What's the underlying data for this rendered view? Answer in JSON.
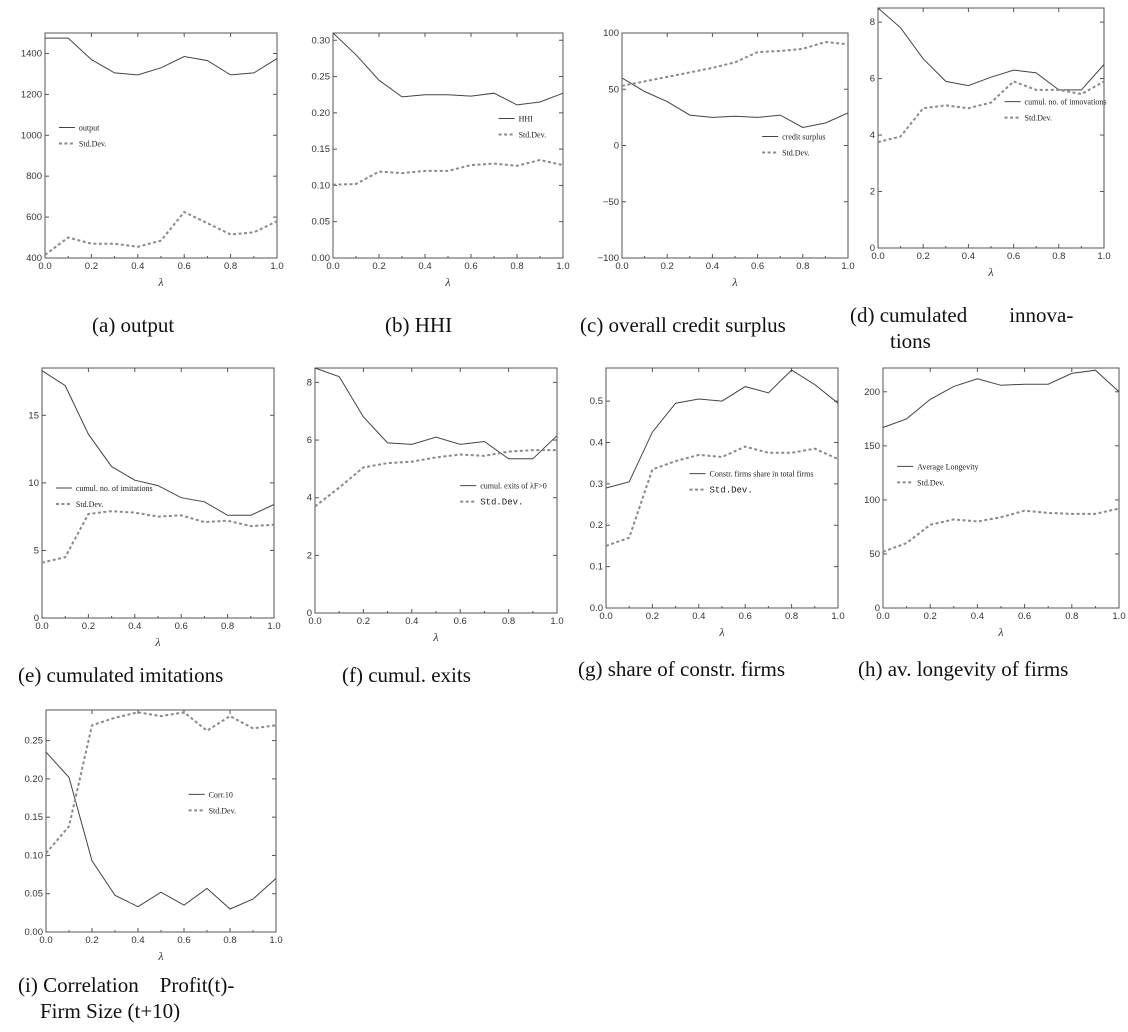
{
  "chart_data": [
    {
      "id": "a",
      "type": "line",
      "caption": "(a) output",
      "xlabel": "λ",
      "xlim": [
        0,
        1
      ],
      "ylim": [
        400,
        1500
      ],
      "xticks": [
        0.0,
        0.2,
        0.4,
        0.6,
        0.8,
        1.0
      ],
      "xtick_labels": [
        "0.0",
        "0.2",
        "0.4",
        "0.6",
        "0.8",
        "1.0"
      ],
      "yticks": [
        400,
        600,
        800,
        1000,
        1200,
        1400
      ],
      "ytick_labels": [
        "400",
        "600",
        "800",
        "1000",
        "1200",
        "1400"
      ],
      "x": [
        0.0,
        0.1,
        0.2,
        0.3,
        0.4,
        0.5,
        0.6,
        0.7,
        0.8,
        0.9,
        1.0
      ],
      "series": [
        {
          "name": "output",
          "style": "solid",
          "values": [
            1475,
            1475,
            1370,
            1305,
            1295,
            1330,
            1385,
            1365,
            1295,
            1305,
            1375
          ]
        },
        {
          "name": "Std.Dev.",
          "style": "dash",
          "values": [
            415,
            500,
            470,
            470,
            455,
            485,
            625,
            570,
            515,
            525,
            580
          ]
        }
      ],
      "legend": "left-middle"
    },
    {
      "id": "b",
      "type": "line",
      "caption": "(b) HHI",
      "xlabel": "λ",
      "xlim": [
        0,
        1
      ],
      "ylim": [
        0,
        0.31
      ],
      "xticks": [
        0.0,
        0.2,
        0.4,
        0.6,
        0.8,
        1.0
      ],
      "xtick_labels": [
        "0.0",
        "0.2",
        "0.4",
        "0.6",
        "0.8",
        "1.0"
      ],
      "yticks": [
        0.0,
        0.05,
        0.1,
        0.15,
        0.2,
        0.25,
        0.3
      ],
      "ytick_labels": [
        "0.00",
        "0.05",
        "0.10",
        "0.15",
        "0.20",
        "0.25",
        "0.30"
      ],
      "x": [
        0.0,
        0.1,
        0.2,
        0.3,
        0.4,
        0.5,
        0.6,
        0.7,
        0.8,
        0.9,
        1.0
      ],
      "series": [
        {
          "name": "HHI",
          "style": "solid",
          "values": [
            0.31,
            0.28,
            0.245,
            0.222,
            0.225,
            0.225,
            0.223,
            0.227,
            0.211,
            0.215,
            0.227
          ]
        },
        {
          "name": "Std.Dev.",
          "style": "dash",
          "values": [
            0.101,
            0.102,
            0.119,
            0.117,
            0.12,
            0.12,
            0.128,
            0.13,
            0.127,
            0.135,
            0.128
          ]
        }
      ],
      "legend": "right-middle"
    },
    {
      "id": "c",
      "type": "line",
      "caption": "(c) overall credit surplus",
      "xlabel": "λ",
      "xlim": [
        0,
        1
      ],
      "ylim": [
        -100,
        100
      ],
      "xticks": [
        0.0,
        0.2,
        0.4,
        0.6,
        0.8,
        1.0
      ],
      "xtick_labels": [
        "0.0",
        "0.2",
        "0.4",
        "0.6",
        "0.8",
        "1.0"
      ],
      "yticks": [
        -100,
        -50,
        0,
        50,
        100
      ],
      "ytick_labels": [
        "−100",
        "−50",
        "0",
        "50",
        "100"
      ],
      "x": [
        0.0,
        0.1,
        0.2,
        0.3,
        0.4,
        0.5,
        0.6,
        0.7,
        0.8,
        0.9,
        1.0
      ],
      "series": [
        {
          "name": "credit surplus",
          "style": "solid",
          "values": [
            60,
            48,
            39,
            27,
            25,
            26,
            25,
            27,
            16,
            20,
            29
          ]
        },
        {
          "name": "Std.Dev.",
          "style": "dash",
          "values": [
            53,
            57,
            61,
            65,
            69,
            74,
            83,
            84,
            86,
            92,
            90
          ]
        }
      ],
      "legend": "right-middle"
    },
    {
      "id": "d",
      "type": "line",
      "caption": "(d) cumulated innovations",
      "xlabel": "λ",
      "xlim": [
        0,
        1
      ],
      "ylim": [
        0,
        8.5
      ],
      "xticks": [
        0.0,
        0.2,
        0.4,
        0.6,
        0.8,
        1.0
      ],
      "xtick_labels": [
        "0.0",
        "0.2",
        "0.4",
        "0.6",
        "0.8",
        "1.0"
      ],
      "yticks": [
        0,
        2,
        4,
        6,
        8
      ],
      "ytick_labels": [
        "0",
        "2",
        "4",
        "6",
        "8"
      ],
      "x": [
        0.0,
        0.1,
        0.2,
        0.3,
        0.4,
        0.5,
        0.6,
        0.7,
        0.8,
        0.9,
        1.0
      ],
      "series": [
        {
          "name": "cumul. no. of innovations",
          "style": "solid",
          "values": [
            8.5,
            7.8,
            6.7,
            5.9,
            5.75,
            6.05,
            6.3,
            6.2,
            5.6,
            5.6,
            6.5
          ]
        },
        {
          "name": "Std.Dev.",
          "style": "dash",
          "values": [
            3.75,
            3.95,
            4.95,
            5.05,
            4.95,
            5.15,
            5.9,
            5.6,
            5.6,
            5.45,
            5.9
          ]
        }
      ],
      "legend": "right-middle"
    },
    {
      "id": "e",
      "type": "line",
      "caption": "(e) cumulated imitations",
      "xlabel": "λ",
      "xlim": [
        0,
        1
      ],
      "ylim": [
        0,
        18.5
      ],
      "xticks": [
        0.0,
        0.2,
        0.4,
        0.6,
        0.8,
        1.0
      ],
      "xtick_labels": [
        "0.0",
        "0.2",
        "0.4",
        "0.6",
        "0.8",
        "1.0"
      ],
      "yticks": [
        0,
        5,
        10,
        15
      ],
      "ytick_labels": [
        "0",
        "5",
        "10",
        "15"
      ],
      "x": [
        0.0,
        0.1,
        0.2,
        0.3,
        0.4,
        0.5,
        0.6,
        0.7,
        0.8,
        0.9,
        1.0
      ],
      "series": [
        {
          "name": "cumul. no. of imitations",
          "style": "solid",
          "values": [
            18.3,
            17.2,
            13.6,
            11.2,
            10.2,
            9.8,
            8.9,
            8.6,
            7.6,
            7.6,
            8.4
          ]
        },
        {
          "name": "Std.Dev.",
          "style": "dash",
          "values": [
            4.1,
            4.5,
            7.7,
            7.9,
            7.8,
            7.5,
            7.6,
            7.1,
            7.2,
            6.8,
            6.9
          ]
        }
      ],
      "legend": "left-middle"
    },
    {
      "id": "f",
      "type": "line",
      "caption": "(f) cumul. exits",
      "xlabel": "λ",
      "xlim": [
        0,
        1
      ],
      "ylim": [
        0,
        8.5
      ],
      "xticks": [
        0.0,
        0.2,
        0.4,
        0.6,
        0.8,
        1.0
      ],
      "xtick_labels": [
        "0.0",
        "0.2",
        "0.4",
        "0.6",
        "0.8",
        "1.0"
      ],
      "yticks": [
        0,
        2,
        4,
        6,
        8
      ],
      "ytick_labels": [
        "0",
        "2",
        "4",
        "6",
        "8"
      ],
      "x": [
        0.0,
        0.1,
        0.2,
        0.3,
        0.4,
        0.5,
        0.6,
        0.7,
        0.8,
        0.9,
        1.0
      ],
      "series": [
        {
          "name": "cumul. exits of λF>0",
          "style": "solid",
          "values": [
            8.5,
            8.2,
            6.8,
            5.9,
            5.85,
            6.1,
            5.85,
            5.95,
            5.35,
            5.35,
            6.15
          ]
        },
        {
          "name": "Std.Dev.",
          "style": "dash",
          "values": [
            3.7,
            4.35,
            5.05,
            5.2,
            5.25,
            5.4,
            5.5,
            5.45,
            5.6,
            5.65,
            5.65
          ]
        }
      ],
      "legend": "right-middle"
    },
    {
      "id": "g",
      "type": "line",
      "caption": "(g) share of constr. firms",
      "xlabel": "λ",
      "xlim": [
        0,
        1
      ],
      "ylim": [
        0,
        0.58
      ],
      "xticks": [
        0.0,
        0.2,
        0.4,
        0.6,
        0.8,
        1.0
      ],
      "xtick_labels": [
        "0.0",
        "0.2",
        "0.4",
        "0.6",
        "0.8",
        "1.0"
      ],
      "yticks": [
        0.0,
        0.1,
        0.2,
        0.3,
        0.4,
        0.5
      ],
      "ytick_labels": [
        "0.0",
        "0.1",
        "0.2",
        "0.3",
        "0.4",
        "0.5"
      ],
      "x": [
        0.0,
        0.1,
        0.2,
        0.3,
        0.4,
        0.5,
        0.6,
        0.7,
        0.8,
        0.9,
        1.0
      ],
      "series": [
        {
          "name": "Constr. firms share in total firms",
          "style": "solid",
          "values": [
            0.29,
            0.305,
            0.425,
            0.495,
            0.505,
            0.5,
            0.535,
            0.52,
            0.575,
            0.54,
            0.495
          ]
        },
        {
          "name": "Std.Dev.",
          "style": "dash",
          "values": [
            0.15,
            0.17,
            0.335,
            0.355,
            0.37,
            0.365,
            0.39,
            0.375,
            0.375,
            0.385,
            0.36
          ]
        }
      ],
      "legend": "right-middle"
    },
    {
      "id": "h",
      "type": "line",
      "caption": "(h) av. longevity of firms",
      "xlabel": "λ",
      "xlim": [
        0,
        1
      ],
      "ylim": [
        0,
        222
      ],
      "xticks": [
        0.0,
        0.2,
        0.4,
        0.6,
        0.8,
        1.0
      ],
      "xtick_labels": [
        "0.0",
        "0.2",
        "0.4",
        "0.6",
        "0.8",
        "1.0"
      ],
      "yticks": [
        0,
        50,
        100,
        150,
        200
      ],
      "ytick_labels": [
        "0",
        "50",
        "100",
        "150",
        "200"
      ],
      "x": [
        0.0,
        0.1,
        0.2,
        0.3,
        0.4,
        0.5,
        0.6,
        0.7,
        0.8,
        0.9,
        1.0
      ],
      "series": [
        {
          "name": "Average Longevity",
          "style": "solid",
          "values": [
            167,
            175,
            193,
            205,
            212,
            206,
            207,
            207,
            217,
            220,
            200
          ]
        },
        {
          "name": "Std.Dev.",
          "style": "dash",
          "values": [
            52,
            60,
            77,
            82,
            80,
            84,
            90,
            88,
            87,
            87,
            92
          ]
        }
      ],
      "legend": "left-middle"
    },
    {
      "id": "i",
      "type": "line",
      "caption": "(i) Correlation Profit(t)- Firm Size (t+10)",
      "caption_lines": [
        "(i) Correlation    Profit(t)-",
        "Firm Size (t+10)"
      ],
      "xlabel": "λ",
      "xlim": [
        0,
        1
      ],
      "ylim": [
        0,
        0.29
      ],
      "xticks": [
        0.0,
        0.2,
        0.4,
        0.6,
        0.8,
        1.0
      ],
      "xtick_labels": [
        "0.0",
        "0.2",
        "0.4",
        "0.6",
        "0.8",
        "1.0"
      ],
      "yticks": [
        0.0,
        0.05,
        0.1,
        0.15,
        0.2,
        0.25
      ],
      "ytick_labels": [
        "0.00",
        "0.05",
        "0.10",
        "0.15",
        "0.20",
        "0.25"
      ],
      "x": [
        0.0,
        0.1,
        0.2,
        0.3,
        0.4,
        0.5,
        0.6,
        0.7,
        0.8,
        0.9,
        1.0
      ],
      "series": [
        {
          "name": "Corr.10",
          "style": "solid",
          "values": [
            0.235,
            0.202,
            0.093,
            0.048,
            0.033,
            0.052,
            0.035,
            0.057,
            0.03,
            0.043,
            0.07
          ]
        },
        {
          "name": "Std.Dev.",
          "style": "dash",
          "values": [
            0.103,
            0.138,
            0.27,
            0.28,
            0.287,
            0.282,
            0.287,
            0.263,
            0.282,
            0.266,
            0.27
          ]
        }
      ],
      "legend": "right-middle"
    }
  ],
  "captions": {
    "a": "(a) output",
    "b": "(b) HHI",
    "c": "(c) overall credit surplus",
    "d1": "(d) cumulated        innova-",
    "d2": "tions",
    "e": "(e) cumulated imitations",
    "f": "(f) cumul. exits",
    "g": "(g) share of constr. firms",
    "h": "(h) av. longevity of firms",
    "i1": "(i) Correlation    Profit(t)-",
    "i2": "Firm Size (t+10)"
  }
}
